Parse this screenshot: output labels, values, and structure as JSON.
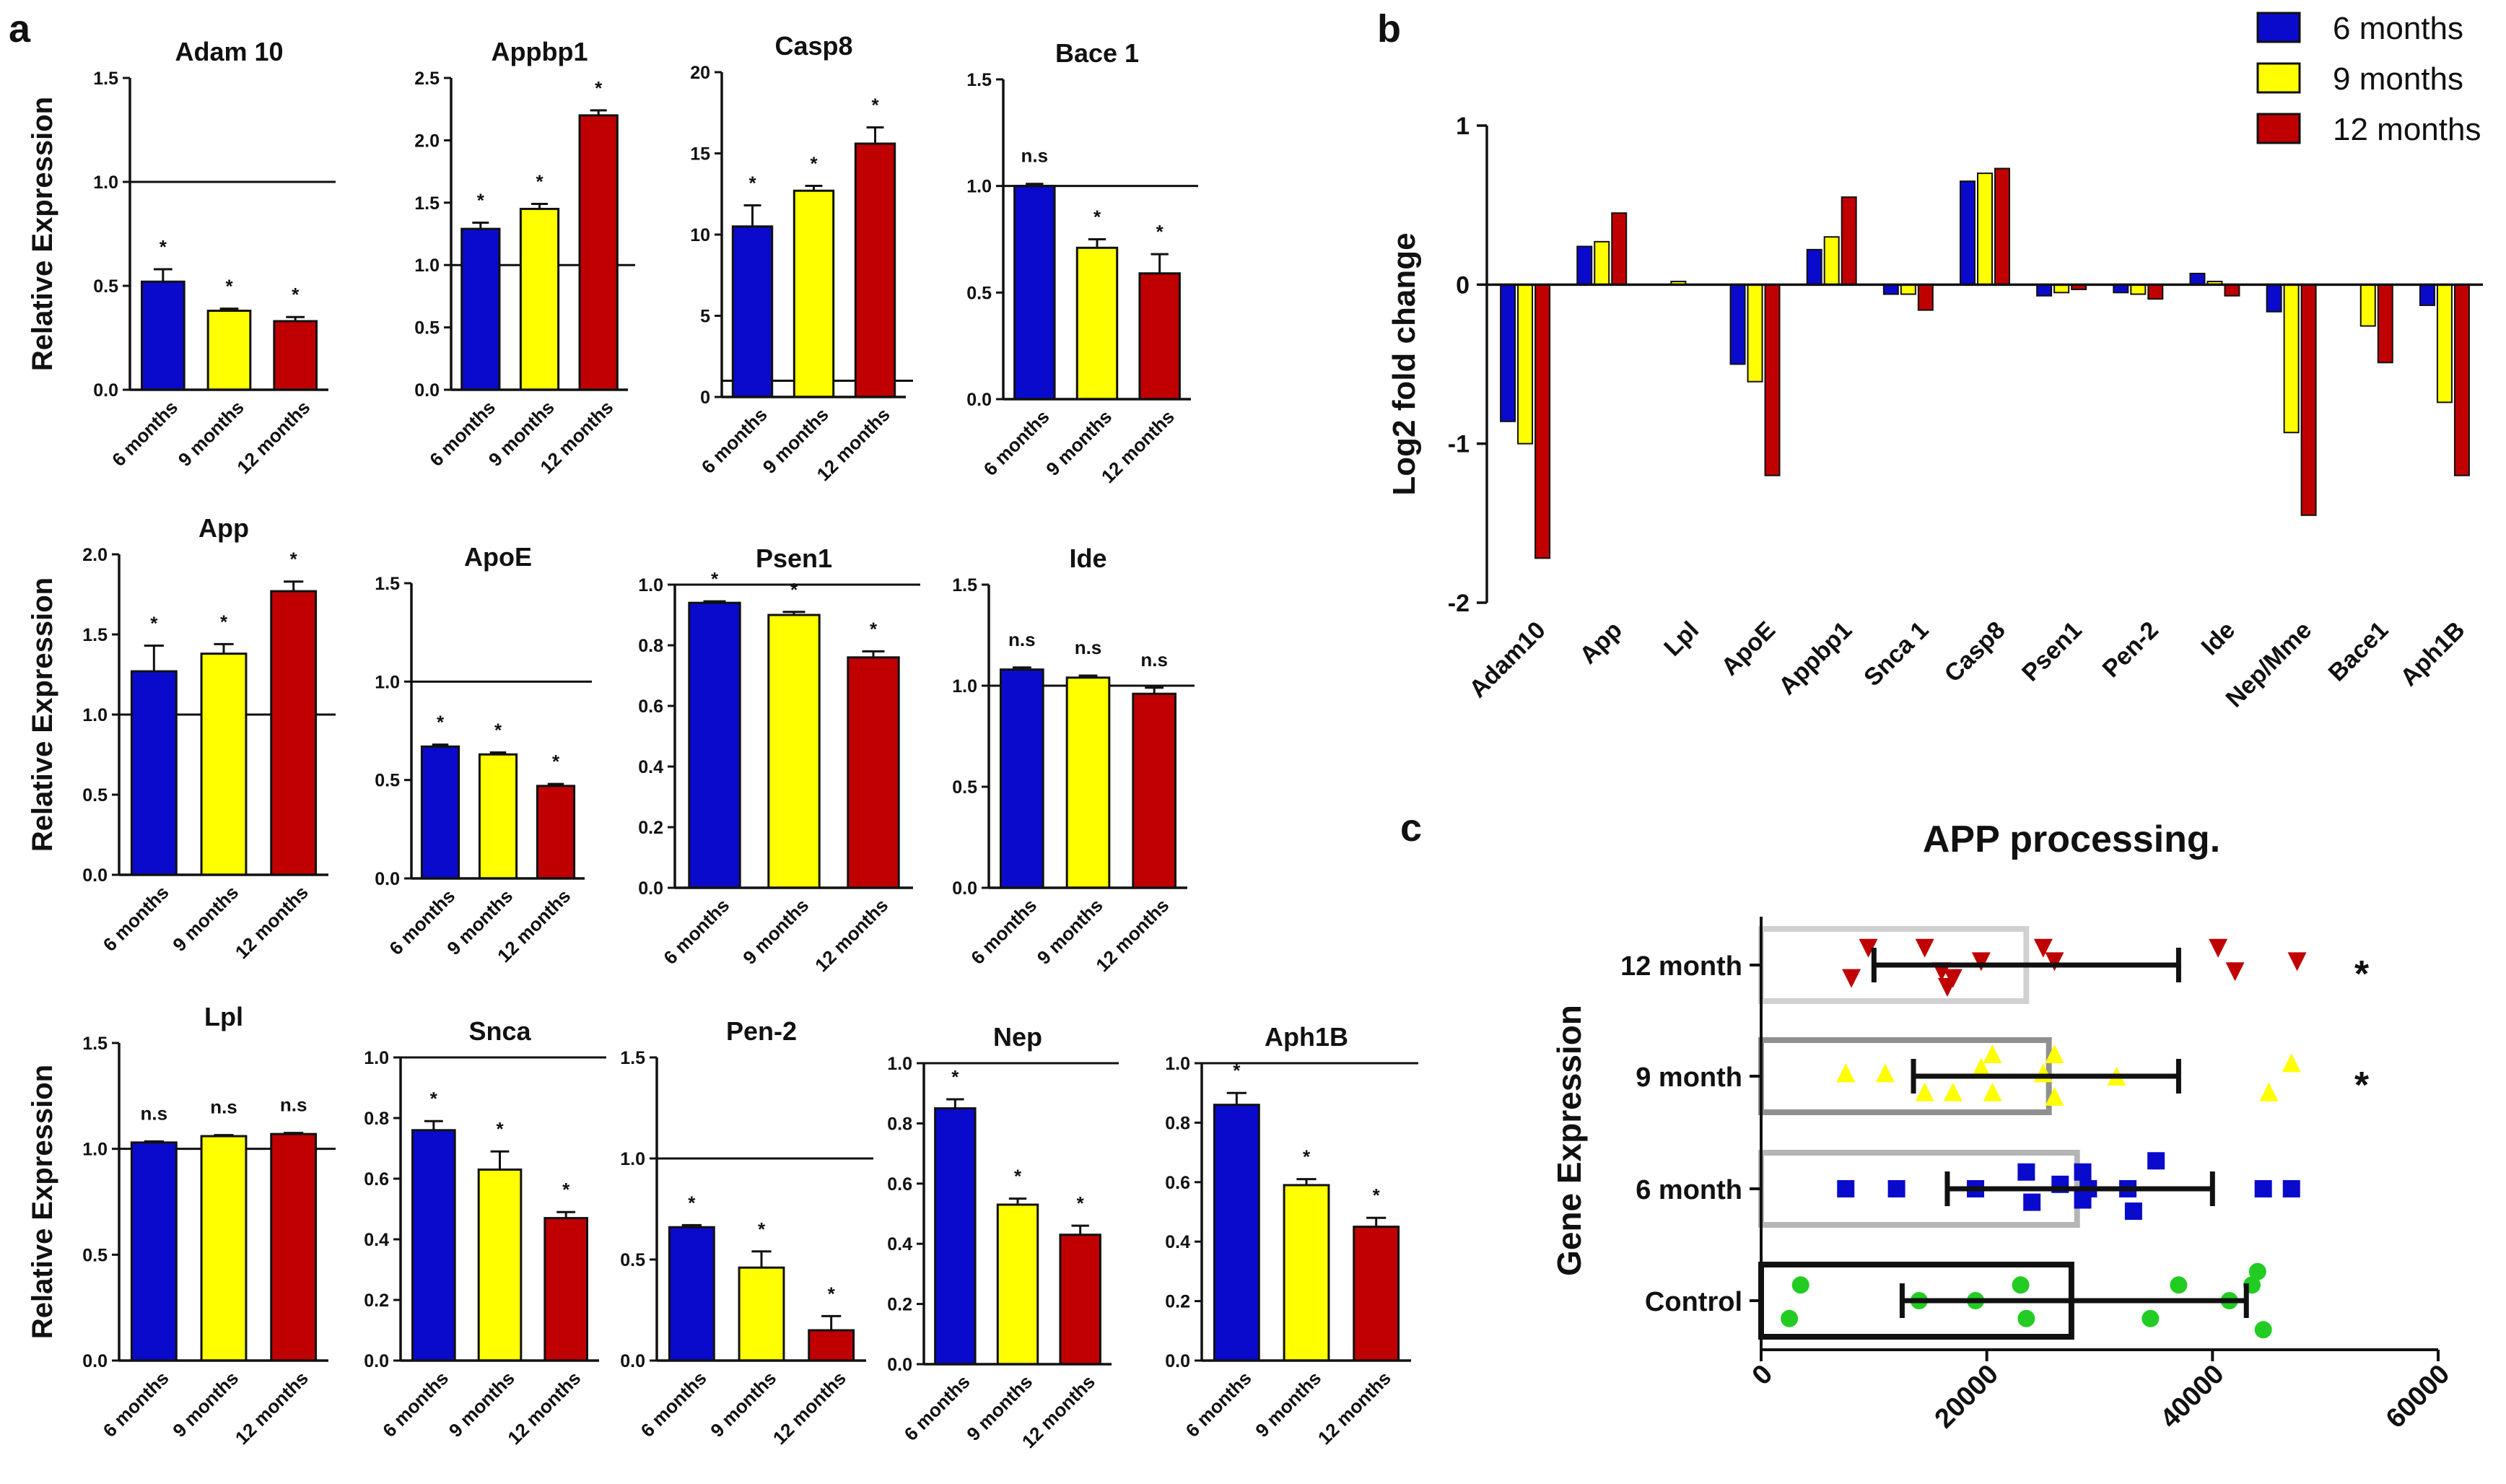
{
  "panels": {
    "a": "a",
    "b": "b",
    "c": "c"
  },
  "colors": {
    "m6": "#0a0acc",
    "m9": "#ffff00",
    "m12": "#c00000",
    "control": "#22cc22",
    "axis": "#111111"
  },
  "chart_data": [
    {
      "id": "adam10",
      "type": "bar",
      "title": "Adam 10",
      "ylabel": "Relative Expression",
      "categories": [
        "6 months",
        "9 months",
        "12 months"
      ],
      "values": [
        0.52,
        0.38,
        0.33
      ],
      "errors": [
        0.06,
        0.01,
        0.02
      ],
      "sig": [
        "*",
        "*",
        "*"
      ],
      "ylim": [
        0,
        1.5
      ],
      "yticks": [
        0.0,
        0.5,
        1.0,
        1.5
      ],
      "yticklabels": [
        "0.0",
        "0.5",
        "1.0",
        "1.5"
      ],
      "refline": 1.0
    },
    {
      "id": "appbp1",
      "type": "bar",
      "title": "Appbp1",
      "ylabel": "",
      "categories": [
        "6 months",
        "9 months",
        "12 months"
      ],
      "values": [
        1.29,
        1.45,
        2.2
      ],
      "errors": [
        0.05,
        0.04,
        0.04
      ],
      "sig": [
        "*",
        "*",
        "*"
      ],
      "ylim": [
        0,
        2.5
      ],
      "yticks": [
        0.0,
        0.5,
        1.0,
        1.5,
        2.0,
        2.5
      ],
      "yticklabels": [
        "0.0",
        "0.5",
        "1.0",
        "1.5",
        "2.0",
        "2.5"
      ],
      "refline": 1.0
    },
    {
      "id": "casp8",
      "type": "bar",
      "title": "Casp8",
      "ylabel": "",
      "categories": [
        "6 months",
        "9 months",
        "12 months"
      ],
      "values": [
        10.5,
        12.7,
        15.6
      ],
      "errors": [
        1.3,
        0.3,
        1.0
      ],
      "sig": [
        "*",
        "*",
        "*"
      ],
      "ylim": [
        0,
        20
      ],
      "yticks": [
        0,
        5,
        10,
        15,
        20
      ],
      "yticklabels": [
        "0",
        "5",
        "10",
        "15",
        "20"
      ],
      "refline": 1.0
    },
    {
      "id": "bace1",
      "type": "bar",
      "title": "Bace 1",
      "ylabel": "",
      "categories": [
        "6 months",
        "9 months",
        "12 months"
      ],
      "values": [
        1.0,
        0.71,
        0.59
      ],
      "errors": [
        0.01,
        0.04,
        0.09
      ],
      "sig": [
        "n.s",
        "*",
        "*"
      ],
      "ylim": [
        0,
        1.5
      ],
      "yticks": [
        0.0,
        0.5,
        1.0,
        1.5
      ],
      "yticklabels": [
        "0.0",
        "0.5",
        "1.0",
        "1.5"
      ],
      "refline": 1.0
    },
    {
      "id": "app",
      "type": "bar",
      "title": "App",
      "ylabel": "Relative Expression",
      "categories": [
        "6 months",
        "9 months",
        "12 months"
      ],
      "values": [
        1.27,
        1.38,
        1.77
      ],
      "errors": [
        0.16,
        0.06,
        0.06
      ],
      "sig": [
        "*",
        "*",
        "*"
      ],
      "ylim": [
        0,
        2.0
      ],
      "yticks": [
        0.0,
        0.5,
        1.0,
        1.5,
        2.0
      ],
      "yticklabels": [
        "0.0",
        "0.5",
        "1.0",
        "1.5",
        "2.0"
      ],
      "refline": 1.0
    },
    {
      "id": "apoe",
      "type": "bar",
      "title": "ApoE",
      "ylabel": "",
      "categories": [
        "6 months",
        "9 months",
        "12 months"
      ],
      "values": [
        0.67,
        0.63,
        0.47
      ],
      "errors": [
        0.01,
        0.01,
        0.01
      ],
      "sig": [
        "*",
        "*",
        "*"
      ],
      "ylim": [
        0,
        1.5
      ],
      "yticks": [
        0.0,
        0.5,
        1.0,
        1.5
      ],
      "yticklabels": [
        "0.0",
        "0.5",
        "1.0",
        "1.5"
      ],
      "refline": 1.0
    },
    {
      "id": "psen1",
      "type": "bar",
      "title": "Psen1",
      "ylabel": "",
      "categories": [
        "6 months",
        "9 months",
        "12 months"
      ],
      "values": [
        0.94,
        0.9,
        0.76
      ],
      "errors": [
        0.005,
        0.01,
        0.02
      ],
      "sig": [
        "*",
        "*",
        "*"
      ],
      "ylim": [
        0,
        1.0
      ],
      "yticks": [
        0.0,
        0.2,
        0.4,
        0.6,
        0.8,
        1.0
      ],
      "yticklabels": [
        "0.0",
        "0.2",
        "0.4",
        "0.6",
        "0.8",
        "1.0"
      ],
      "refline": 1.0
    },
    {
      "id": "ide",
      "type": "bar",
      "title": "Ide",
      "ylabel": "",
      "categories": [
        "6 months",
        "9 months",
        "12 months"
      ],
      "values": [
        1.08,
        1.04,
        0.96
      ],
      "errors": [
        0.01,
        0.01,
        0.03
      ],
      "sig": [
        "n.s",
        "n.s",
        "n.s"
      ],
      "ylim": [
        0,
        1.5
      ],
      "yticks": [
        0.0,
        0.5,
        1.0,
        1.5
      ],
      "yticklabels": [
        "0.0",
        "0.5",
        "1.0",
        "1.5"
      ],
      "refline": 1.0
    },
    {
      "id": "lpl",
      "type": "bar",
      "title": "Lpl",
      "ylabel": "Relative Expression",
      "categories": [
        "6 months",
        "9 months",
        "12 months"
      ],
      "values": [
        1.03,
        1.06,
        1.07
      ],
      "errors": [
        0.005,
        0.005,
        0.005
      ],
      "sig": [
        "n.s",
        "n.s",
        "n.s"
      ],
      "ylim": [
        0,
        1.5
      ],
      "yticks": [
        0.0,
        0.5,
        1.0,
        1.5
      ],
      "yticklabels": [
        "0.0",
        "0.5",
        "1.0",
        "1.5"
      ],
      "refline": 1.0
    },
    {
      "id": "snca",
      "type": "bar",
      "title": "Snca",
      "ylabel": "",
      "categories": [
        "6 months",
        "9 months",
        "12 months"
      ],
      "values": [
        0.76,
        0.63,
        0.47
      ],
      "errors": [
        0.03,
        0.06,
        0.02
      ],
      "sig": [
        "*",
        "*",
        "*"
      ],
      "ylim": [
        0,
        1.0
      ],
      "yticks": [
        0.0,
        0.2,
        0.4,
        0.6,
        0.8,
        1.0
      ],
      "yticklabels": [
        "0.0",
        "0.2",
        "0.4",
        "0.6",
        "0.8",
        "1.0"
      ],
      "refline": 1.0
    },
    {
      "id": "pen2",
      "type": "bar",
      "title": "Pen-2",
      "ylabel": "",
      "categories": [
        "6 months",
        "9 months",
        "12 months"
      ],
      "values": [
        0.66,
        0.46,
        0.15
      ],
      "errors": [
        0.01,
        0.08,
        0.07
      ],
      "sig": [
        "*",
        "*",
        "*"
      ],
      "ylim": [
        0,
        1.5
      ],
      "yticks": [
        0.0,
        0.5,
        1.0,
        1.5
      ],
      "yticklabels": [
        "0.0",
        "0.5",
        "1.0",
        "1.5"
      ],
      "refline": 1.0
    },
    {
      "id": "nep",
      "type": "bar",
      "title": "Nep",
      "ylabel": "",
      "categories": [
        "6 months",
        "9 months",
        "12 months"
      ],
      "values": [
        0.85,
        0.53,
        0.43
      ],
      "errors": [
        0.03,
        0.02,
        0.03
      ],
      "sig": [
        "*",
        "*",
        "*"
      ],
      "ylim": [
        0,
        1.0
      ],
      "yticks": [
        0.0,
        0.2,
        0.4,
        0.6,
        0.8,
        1.0
      ],
      "yticklabels": [
        "0.0",
        "0.2",
        "0.4",
        "0.6",
        "0.8",
        "1.0"
      ],
      "refline": 1.0
    },
    {
      "id": "aph1b",
      "type": "bar",
      "title": "Aph1B",
      "ylabel": "",
      "categories": [
        "6 months",
        "9 months",
        "12 months"
      ],
      "values": [
        0.86,
        0.59,
        0.45
      ],
      "errors": [
        0.04,
        0.02,
        0.03
      ],
      "sig": [
        "*",
        "*",
        "*"
      ],
      "ylim": [
        0,
        1.0
      ],
      "yticks": [
        0.0,
        0.2,
        0.4,
        0.6,
        0.8,
        1.0
      ],
      "yticklabels": [
        "0.0",
        "0.2",
        "0.4",
        "0.6",
        "0.8",
        "1.0"
      ],
      "refline": 1.0
    },
    {
      "id": "log2fc",
      "type": "bar",
      "title": "",
      "ylabel": "Log2 fold change",
      "ylim": [
        -2,
        1
      ],
      "yticks": [
        -2,
        -1,
        0,
        1
      ],
      "yticklabels": [
        "-2",
        "-1",
        "0",
        "1"
      ],
      "categories": [
        "Adam10",
        "App",
        "Lpl",
        "ApoE",
        "Appbp1",
        "Snca 1",
        "Casp8",
        "Psen1",
        "Pen-2",
        "Ide",
        "Nep/Mme",
        "Bace1",
        "Aph1B"
      ],
      "series": [
        {
          "name": "6 months",
          "values": [
            -0.86,
            0.24,
            0.0,
            -0.5,
            0.22,
            -0.06,
            0.65,
            -0.07,
            -0.05,
            0.07,
            -0.17,
            0.0,
            -0.13
          ]
        },
        {
          "name": "9 months",
          "values": [
            -1.0,
            0.27,
            0.02,
            -0.61,
            0.3,
            -0.06,
            0.7,
            -0.05,
            -0.06,
            0.02,
            -0.93,
            -0.26,
            -0.74
          ]
        },
        {
          "name": "12 months",
          "values": [
            -1.72,
            0.45,
            0.0,
            -1.2,
            0.55,
            -0.16,
            0.73,
            -0.03,
            -0.09,
            -0.07,
            -1.45,
            -0.49,
            -1.2
          ]
        }
      ],
      "legend": [
        "6 months",
        "9 months",
        "12 months"
      ]
    },
    {
      "id": "app_processing",
      "type": "scatter",
      "title": "APP processing.",
      "ylabel": "Gene Expression",
      "xlim": [
        0,
        60000
      ],
      "xticks": [
        0,
        20000,
        40000,
        60000
      ],
      "xticklabels": [
        "0",
        "20000",
        "40000",
        "60000"
      ],
      "groups": [
        {
          "name": "12 month",
          "mean": 23500,
          "ci": [
            10000,
            37000
          ],
          "sig": "*",
          "points": [
            [
              8000,
              -0.12
            ],
            [
              9500,
              0.15
            ],
            [
              14500,
              0.15
            ],
            [
              16000,
              -0.06
            ],
            [
              16500,
              -0.2
            ],
            [
              17000,
              -0.12
            ],
            [
              19500,
              0.03
            ],
            [
              25000,
              0.15
            ],
            [
              26000,
              0.03
            ],
            [
              40500,
              0.15
            ],
            [
              42000,
              -0.06
            ],
            [
              47500,
              0.03
            ]
          ]
        },
        {
          "name": "9 month",
          "mean": 25500,
          "ci": [
            13500,
            37000
          ],
          "sig": "*",
          "points": [
            [
              7500,
              0.03
            ],
            [
              11000,
              0.03
            ],
            [
              14500,
              -0.14
            ],
            [
              17000,
              -0.14
            ],
            [
              19500,
              0.08
            ],
            [
              20500,
              0.2
            ],
            [
              20500,
              -0.14
            ],
            [
              25000,
              0.03
            ],
            [
              26000,
              0.2
            ],
            [
              26000,
              -0.18
            ],
            [
              31500,
              0.0
            ],
            [
              45000,
              -0.14
            ],
            [
              47000,
              0.12
            ]
          ]
        },
        {
          "name": "6 month",
          "mean": 28000,
          "ci": [
            16500,
            40000
          ],
          "sig": "",
          "points": [
            [
              7500,
              0.0
            ],
            [
              12000,
              0.0
            ],
            [
              19000,
              0.0
            ],
            [
              23500,
              0.15
            ],
            [
              24000,
              -0.12
            ],
            [
              26500,
              0.04
            ],
            [
              28500,
              0.15
            ],
            [
              28500,
              -0.1
            ],
            [
              29000,
              0.0
            ],
            [
              32500,
              0.0
            ],
            [
              33000,
              -0.2
            ],
            [
              35000,
              0.25
            ],
            [
              44500,
              0.0
            ],
            [
              47000,
              0.0
            ]
          ]
        },
        {
          "name": "Control",
          "mean": 27500,
          "ci": [
            12500,
            43000
          ],
          "sig": "",
          "points": [
            [
              2500,
              -0.16
            ],
            [
              3500,
              0.14
            ],
            [
              14000,
              0.0
            ],
            [
              19000,
              0.0
            ],
            [
              23000,
              0.14
            ],
            [
              23500,
              -0.16
            ],
            [
              34500,
              -0.16
            ],
            [
              37000,
              0.14
            ],
            [
              41500,
              0.0
            ],
            [
              43500,
              0.14
            ],
            [
              44000,
              0.26
            ],
            [
              44500,
              -0.26
            ]
          ]
        }
      ]
    }
  ]
}
